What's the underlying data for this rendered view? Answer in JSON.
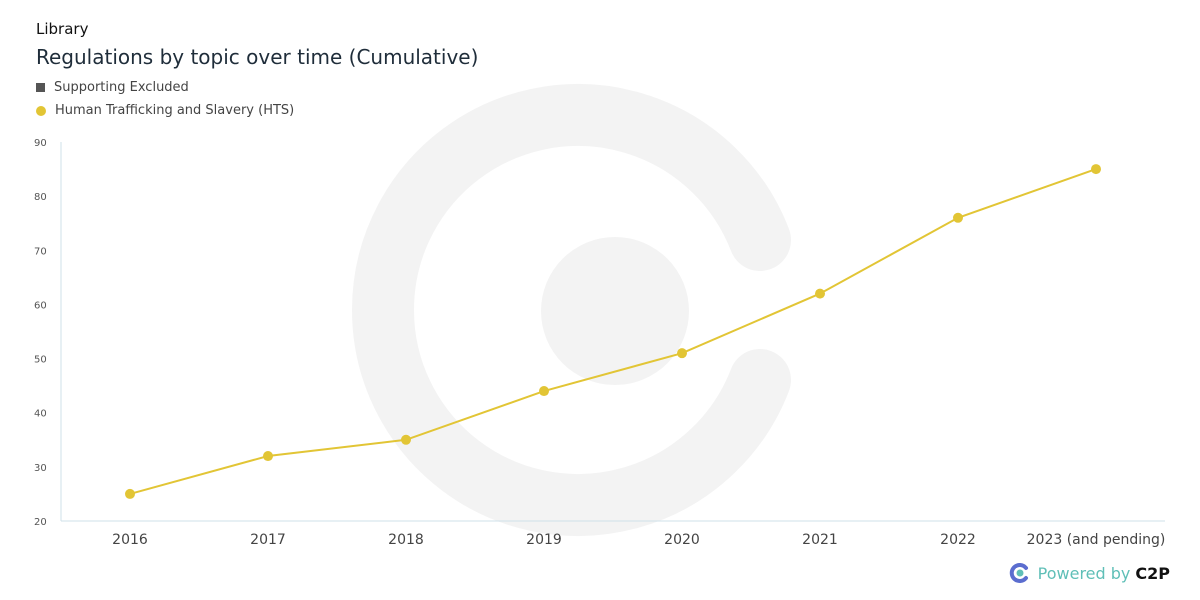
{
  "header": {
    "section": "Library",
    "title": "Regulations by topic over time (Cumulative)"
  },
  "legend": [
    {
      "label": "Supporting Excluded",
      "color": "#555555",
      "shape": "square"
    },
    {
      "label": "Human Trafficking and Slavery (HTS)",
      "color": "#e2c535",
      "shape": "circle"
    }
  ],
  "footer": {
    "powered": "Powered by",
    "brand": "C2P",
    "icon": "c2p-logo-icon"
  },
  "chart_data": {
    "type": "line",
    "title": "Regulations by topic over time (Cumulative)",
    "categories": [
      "2016",
      "2017",
      "2018",
      "2019",
      "2020",
      "2021",
      "2022",
      "2023 (and pending)"
    ],
    "series": [
      {
        "name": "Human Trafficking and Slavery (HTS)",
        "values": [
          25,
          32,
          35,
          44,
          51,
          62,
          76,
          85
        ],
        "color": "#e2c535"
      }
    ],
    "ylim": [
      20,
      90
    ],
    "yticks": [
      20,
      30,
      40,
      50,
      60,
      70,
      80,
      90
    ],
    "xlabel": "",
    "ylabel": "",
    "grid": false,
    "legend_position": "top-left"
  }
}
